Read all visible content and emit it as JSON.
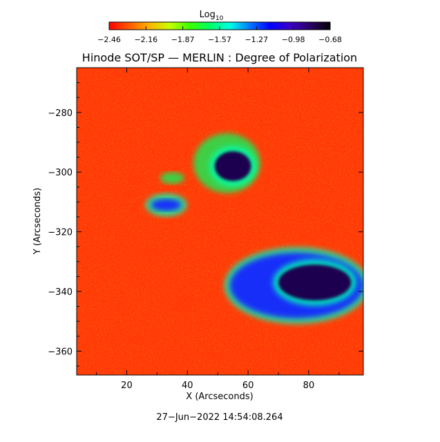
{
  "title": "Hinode SOT/SP — MERLIN : Degree of Polarization",
  "colorbar": {
    "label_main": "Log",
    "label_sub": "10",
    "ticks": [
      "−2.46",
      "−2.16",
      "−1.87",
      "−1.57",
      "−1.27",
      "−0.98",
      "−0.68"
    ],
    "colors": [
      "#ff0000",
      "#ff5a00",
      "#ffb400",
      "#c8ff00",
      "#3cff00",
      "#00ff64",
      "#00ffe6",
      "#0078ff",
      "#0000ff",
      "#3c00c8",
      "#2a0064",
      "#000000"
    ]
  },
  "axes": {
    "xlabel": "X (Arcseconds)",
    "ylabel": "Y (Arcseconds)",
    "x_range": [
      3.5,
      98
    ],
    "y_range": [
      -368,
      -265
    ],
    "x_ticks": [
      20,
      40,
      60,
      80
    ],
    "y_ticks": [
      -360,
      -340,
      -320,
      -300,
      -280
    ],
    "x_ticklabels": [
      "20",
      "40",
      "60",
      "80"
    ],
    "y_ticklabels": [
      "−360",
      "−340",
      "−320",
      "−300",
      "−280"
    ]
  },
  "map": {
    "background_color": "#ff3a08",
    "features": [
      {
        "name": "sunspot-umbra-main",
        "x": 82,
        "y": -337,
        "rx": 12,
        "ry": 6,
        "level": "umbra"
      },
      {
        "name": "sunspot-penumbra-main",
        "x": 76,
        "y": -338,
        "rx": 22,
        "ry": 11,
        "level": "penumbra"
      },
      {
        "name": "pore-upper",
        "x": 55,
        "y": -298,
        "rx": 6,
        "ry": 5,
        "level": "umbra"
      },
      {
        "name": "pore-upper-halo",
        "x": 53,
        "y": -297,
        "rx": 11,
        "ry": 10,
        "level": "plage"
      },
      {
        "name": "patch-left",
        "x": 33,
        "y": -311,
        "rx": 5,
        "ry": 2,
        "level": "penumbra"
      },
      {
        "name": "patch-mid-left",
        "x": 35,
        "y": -302,
        "rx": 4,
        "ry": 2,
        "level": "plage"
      }
    ]
  },
  "timestamp": "27−Jun−2022 14:54:08.264"
}
